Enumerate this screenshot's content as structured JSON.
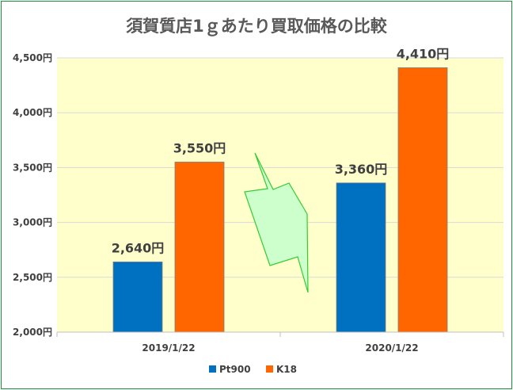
{
  "chart_data": {
    "type": "bar",
    "title": "須賀質店1ｇあたり買取価格の比較",
    "categories": [
      "2019/1/22",
      "2020/1/22"
    ],
    "series": [
      {
        "name": "Pt900",
        "values": [
          2640,
          3360
        ],
        "labels": [
          "2,640円",
          "3,360円"
        ],
        "color": "#0070c0"
      },
      {
        "name": "K18",
        "values": [
          3550,
          4410
        ],
        "labels": [
          "3,550円",
          "4,410円"
        ],
        "color": "#ff6600"
      }
    ],
    "ylim": [
      2000,
      4500
    ],
    "yticks": [
      {
        "value": 2000,
        "label": "2,000円"
      },
      {
        "value": 2500,
        "label": "2,500円"
      },
      {
        "value": 3000,
        "label": "3,000円"
      },
      {
        "value": 3500,
        "label": "3,500円"
      },
      {
        "value": 4000,
        "label": "4,000円"
      },
      {
        "value": 4500,
        "label": "4,500円"
      }
    ],
    "grid": true,
    "legend_position": "bottom",
    "plot_background": "#ffffcc",
    "annotation": {
      "shape": "lightning-arrow",
      "fill": "#ccffcc",
      "stroke": "#33cc33"
    }
  }
}
